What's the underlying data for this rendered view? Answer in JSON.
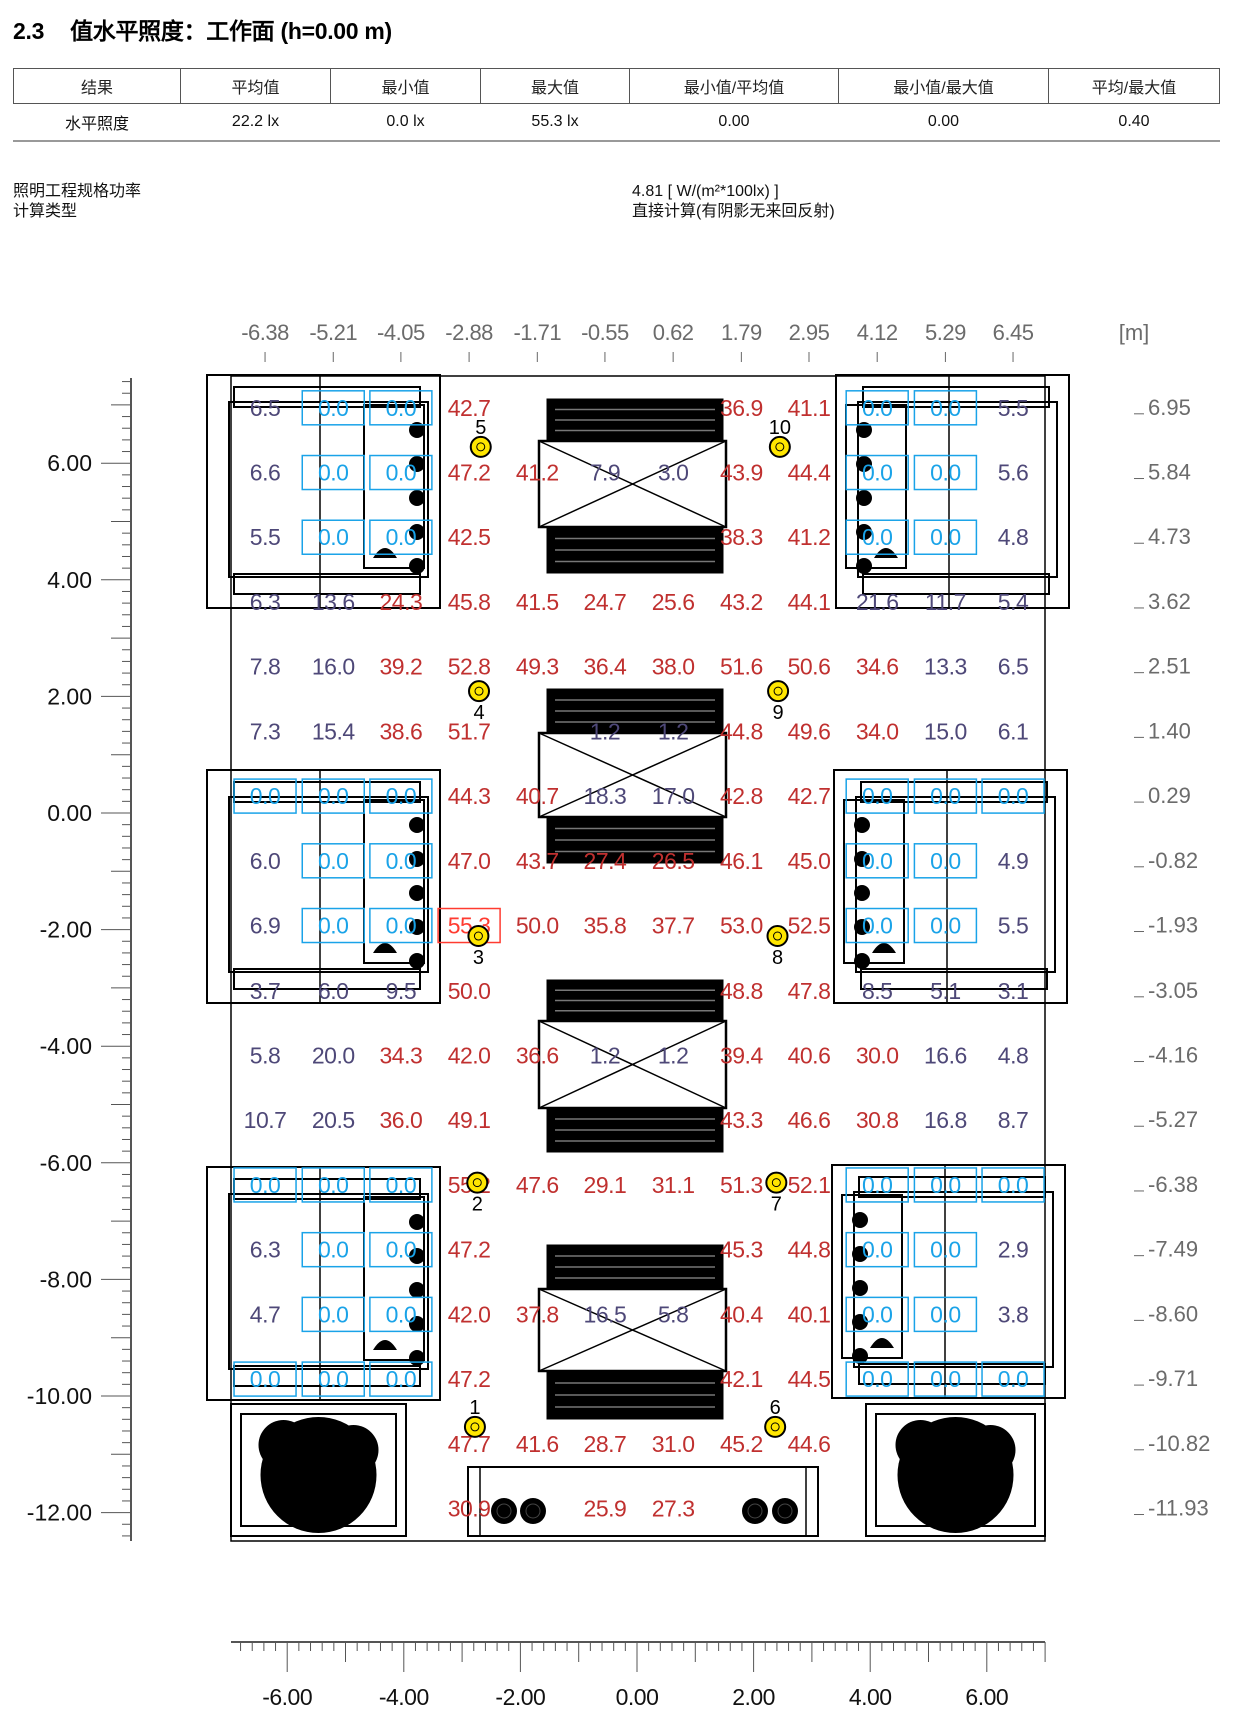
{
  "header": {
    "section": "2.3",
    "title": "值水平照度：工作面 (h=0.00 m)"
  },
  "summary": {
    "columns": [
      "结果",
      "平均值",
      "最小值",
      "最大值",
      "最小值/平均值",
      "最小值/最大值",
      "平均/最大值"
    ],
    "rows": [
      [
        "水平照度",
        "22.2 lx",
        "0.0 lx",
        "55.3 lx",
        "0.00",
        "0.00",
        "0.40"
      ]
    ]
  },
  "info": [
    {
      "label": "照明工程规格功率",
      "value": "4.81 [ W/(m²*100lx) ]"
    },
    {
      "label": "计算类型",
      "value": "直接计算(有阴影无来回反射)"
    }
  ],
  "plan": {
    "unit": "[m]",
    "grid_x_labels": [
      "-6.38",
      "-5.21",
      "-4.05",
      "-2.88",
      "-1.71",
      "-0.55",
      "0.62",
      "1.79",
      "2.95",
      "4.12",
      "5.29",
      "6.45"
    ],
    "grid_y_labels": [
      "6.95",
      "5.84",
      "4.73",
      "3.62",
      "2.51",
      "1.40",
      "0.29",
      "-0.82",
      "-1.93",
      "-3.05",
      "-4.16",
      "-5.27",
      "-6.38",
      "-7.49",
      "-8.60",
      "-9.71",
      "-10.82",
      "-11.93"
    ],
    "ruler_y_labels": [
      "6.00",
      "4.00",
      "2.00",
      "0.00",
      "-2.00",
      "-4.00",
      "-6.00",
      "-8.00",
      "-10.00",
      "-12.00"
    ],
    "ruler_x_labels": [
      "-6.00",
      "-4.00",
      "-2.00",
      "0.00",
      "2.00",
      "4.00",
      "6.00"
    ],
    "values_lx": [
      [
        6.5,
        0.0,
        0.0,
        42.7,
        null,
        null,
        null,
        36.9,
        41.1,
        0.0,
        0.0,
        5.5
      ],
      [
        6.6,
        0.0,
        0.0,
        47.2,
        41.2,
        7.9,
        3.0,
        43.9,
        44.4,
        0.0,
        0.0,
        5.6
      ],
      [
        5.5,
        0.0,
        0.0,
        42.5,
        null,
        null,
        null,
        38.3,
        41.2,
        0.0,
        0.0,
        4.8
      ],
      [
        6.3,
        13.6,
        24.3,
        45.8,
        41.5,
        24.7,
        25.6,
        43.2,
        44.1,
        21.6,
        11.7,
        5.4
      ],
      [
        7.8,
        16.0,
        39.2,
        52.8,
        49.3,
        36.4,
        38.0,
        51.6,
        50.6,
        34.6,
        13.3,
        6.5
      ],
      [
        7.3,
        15.4,
        38.6,
        51.7,
        null,
        1.2,
        1.2,
        44.8,
        49.6,
        34.0,
        15.0,
        6.1
      ],
      [
        0.0,
        0.0,
        0.0,
        44.3,
        40.7,
        18.3,
        17.0,
        42.8,
        42.7,
        0.0,
        0.0,
        0.0
      ],
      [
        6.0,
        0.0,
        0.0,
        47.0,
        43.7,
        27.4,
        26.5,
        46.1,
        45.0,
        0.0,
        0.0,
        4.9
      ],
      [
        6.9,
        0.0,
        0.0,
        55.3,
        50.0,
        35.8,
        37.7,
        53.0,
        52.5,
        0.0,
        0.0,
        5.5
      ],
      [
        3.7,
        6.0,
        9.5,
        50.0,
        null,
        null,
        null,
        48.8,
        47.8,
        8.5,
        5.1,
        3.1
      ],
      [
        5.8,
        20.0,
        34.3,
        42.0,
        36.6,
        1.2,
        1.2,
        39.4,
        40.6,
        30.0,
        16.6,
        4.8
      ],
      [
        10.7,
        20.5,
        36.0,
        49.1,
        null,
        null,
        null,
        43.3,
        46.6,
        30.8,
        16.8,
        8.7
      ],
      [
        0.0,
        0.0,
        0.0,
        55.2,
        47.6,
        29.1,
        31.1,
        51.3,
        52.1,
        0.0,
        0.0,
        0.0
      ],
      [
        6.3,
        0.0,
        0.0,
        47.2,
        null,
        null,
        null,
        45.3,
        44.8,
        0.0,
        0.0,
        2.9
      ],
      [
        4.7,
        0.0,
        0.0,
        42.0,
        37.8,
        16.5,
        5.8,
        40.4,
        40.1,
        0.0,
        0.0,
        3.8
      ],
      [
        0.0,
        0.0,
        0.0,
        47.2,
        null,
        null,
        null,
        42.1,
        44.5,
        0.0,
        0.0,
        0.0
      ],
      [
        null,
        null,
        null,
        47.7,
        41.6,
        28.7,
        31.0,
        45.2,
        44.6,
        null,
        null,
        null
      ],
      [
        null,
        null,
        null,
        30.9,
        null,
        25.9,
        27.3,
        null,
        null,
        null,
        null,
        null
      ]
    ],
    "max_value_lx": 55.3,
    "luminaire_labels": [
      "1",
      "2",
      "3",
      "4",
      "5",
      "6",
      "7",
      "8",
      "9",
      "10"
    ]
  },
  "colors": {
    "value_high": "#c0302f",
    "value_low": "#4e4878",
    "value_zero": "#1aa3e8",
    "max_box": "#ff3b30",
    "luminaire": "#ffe600",
    "axis_text": "#6b6b6b"
  }
}
